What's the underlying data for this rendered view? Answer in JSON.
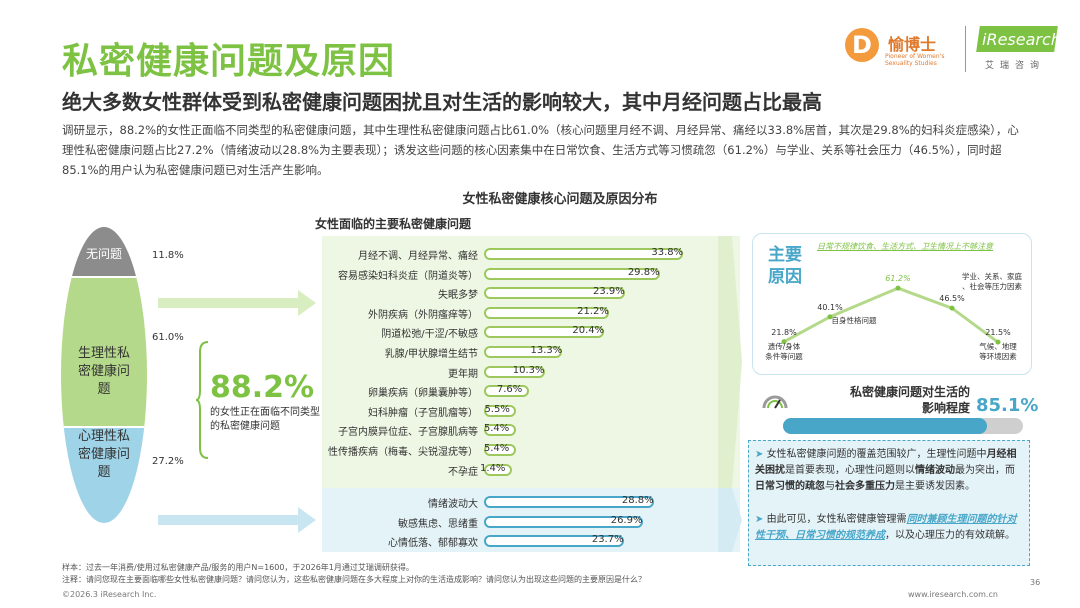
{
  "header": {
    "title": "私密健康问题及原因",
    "subtitle": "绝大多数女性群体受到私密健康问题困扰且对生活的影响较大，其中月经问题占比最高",
    "summary": "调研显示，88.2%的女性正面临不同类型的私密健康问题，其中生理性私密健康问题占比61.0%（核心问题里月经不调、月经异常、痛经以33.8%居首，其次是29.8%的妇科炎症感染），心理性私密健康问题占比27.2%（情绪波动以28.8%为主要表现）；诱发这些问题的核心因素集中在日常饮食、生活方式等习惯疏忽（61.2%）与学业、关系等社会压力（46.5%），同时超85.1%的用户认为私密健康问题已对生活产生影响。"
  },
  "logos": {
    "yuboshi_mark": "D",
    "yuboshi_cn": "愉博士",
    "yuboshi_en": "Pioneer of Women's Sexuality Studies",
    "iresearch": "iResearch",
    "iresearch_cn": "艾瑞咨询"
  },
  "chart_title": "女性私密健康核心问题及原因分布",
  "oval": {
    "none_label": "无问题",
    "none_pct": "11.8%",
    "phys_label": "生理性私密健康问题",
    "phys_pct": "61.0%",
    "psy_label": "心理性私密健康问题",
    "psy_pct": "27.2%",
    "total_pct": "88.2%",
    "total_desc": "的女性正在面临不同类型的私密健康问题"
  },
  "chart_data": [
    {
      "type": "bar",
      "title": "女性面临的主要私密健康问题",
      "unit": "%",
      "xlim": [
        0,
        40
      ],
      "series": [
        {
          "name": "生理性",
          "categories": [
            "月经不调、月经异常、痛经",
            "容易感染妇科炎症（阴道炎等）",
            "失眠多梦",
            "外阴疾病（外阴瘙痒等）",
            "阴道松弛/干涩/不敏感",
            "乳腺/甲状腺增生结节",
            "更年期",
            "卵巢疾病（卵巢囊肿等）",
            "妇科肿瘤（子宫肌瘤等）",
            "子宫内膜异位症、子宫腺肌病等",
            "性传播疾病（梅毒、尖锐湿疣等）",
            "不孕症"
          ],
          "values": [
            33.8,
            29.8,
            23.9,
            21.2,
            20.4,
            13.3,
            10.3,
            7.6,
            5.5,
            5.4,
            5.4,
            1.4
          ]
        },
        {
          "name": "心理性",
          "categories": [
            "情绪波动大",
            "敏感焦虑、思绪重",
            "心情低落、郁郁寡欢"
          ],
          "values": [
            28.8,
            26.9,
            23.7
          ]
        }
      ]
    },
    {
      "type": "line",
      "title": "主要原因",
      "categories": [
        "遗传/身体条件等问题",
        "自身性格问题",
        "日常不规律饮食、生活方式，卫生情况上不够注意",
        "学业、关系、家庭、社会等压力因素",
        "气候、地理等环境因素"
      ],
      "values": [
        21.8,
        40.1,
        61.2,
        46.5,
        21.5
      ],
      "highlight_index": 2
    },
    {
      "type": "bar",
      "title": "私密健康问题对生活的影响程度",
      "values": [
        85.1
      ],
      "xlim": [
        0,
        100
      ]
    }
  ],
  "causes": {
    "title": "主要原因",
    "note": "日常不规律饮食、生活方式、卫生情况上不够注意",
    "labels": [
      {
        "text": "遗传/身体条件等问题",
        "val": "21.8%"
      },
      {
        "text": "自身性格问题",
        "val": "40.1%"
      },
      {
        "text": "",
        "val": "61.2%"
      },
      {
        "text": "学业、关系、家庭、社会等压力因素",
        "val": "46.5%"
      },
      {
        "text": "气候、地理等环境因素",
        "val": "21.5%"
      }
    ]
  },
  "impact": {
    "label": "私密健康问题对生活的影响程度",
    "value": "85.1%",
    "fraction": 0.851
  },
  "insights": [
    {
      "pre": "女性私密健康问题的覆盖范围较广，生理性问题中",
      "b1": "月经相关困扰",
      "mid": "是首要表现，心理性问题则以",
      "b2": "情绪波动",
      "mid2": "最为突出，而",
      "b3": "日常习惯的疏忽",
      "mid3": "与",
      "b4": "社会多重压力",
      "post": "是主要诱发因素。"
    },
    {
      "pre": "由此可见，女性私密健康管理需",
      "hl": "同时兼顾生理问题的针对性干预、日常习惯的规范养成",
      "post": "，以及心理压力的有效疏解。"
    }
  ],
  "footer": {
    "sample": "样本：过去一年消费/使用过私密健康产品/服务的用户N=1600，于2026年1月通过艾瑞调研获得。",
    "note": "注释：请问您现在主要面临哪些女性私密健康问题？请问您认为，这些私密健康问题在多大程度上对你的生活造成影响？请问您认为出现这些问题的主要原因是什么？",
    "copyright": "©2026.3 iResearch Inc.",
    "website": "www.iresearch.com.cn",
    "page": "36"
  },
  "colors": {
    "green": "#7dc242",
    "blue": "#48a6c9",
    "gray": "#8c8c8c"
  }
}
